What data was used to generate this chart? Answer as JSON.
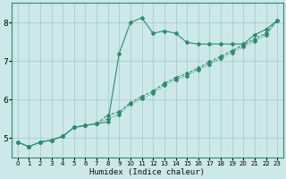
{
  "xlabel": "Humidex (Indice chaleur)",
  "bg_color": "#cce8e8",
  "grid_color": "#aacccc",
  "line_color": "#2e8b74",
  "xlim": [
    -0.5,
    23.5
  ],
  "ylim": [
    4.5,
    8.5
  ],
  "xtick_labels": [
    "0",
    "1",
    "2",
    "3",
    "4",
    "5",
    "6",
    "7",
    "8",
    "9",
    "10",
    "11",
    "12",
    "13",
    "14",
    "15",
    "16",
    "17",
    "18",
    "19",
    "20",
    "21",
    "22",
    "23"
  ],
  "xtick_pos": [
    0,
    1,
    2,
    3,
    4,
    5,
    6,
    7,
    8,
    9,
    10,
    11,
    12,
    13,
    14,
    15,
    16,
    17,
    18,
    19,
    20,
    21,
    22,
    23
  ],
  "yticks": [
    5,
    6,
    7,
    8
  ],
  "curve1_x": [
    0,
    1,
    2,
    3,
    4,
    5,
    6,
    7,
    8,
    9,
    10,
    11,
    12,
    13,
    14,
    15,
    16,
    17,
    18,
    19,
    20,
    21,
    22,
    23
  ],
  "curve1_y": [
    4.9,
    4.78,
    4.9,
    4.95,
    5.05,
    5.28,
    5.33,
    5.38,
    5.42,
    7.2,
    8.0,
    8.12,
    7.72,
    7.78,
    7.72,
    7.48,
    7.44,
    7.44,
    7.44,
    7.44,
    7.44,
    7.68,
    7.82,
    8.05
  ],
  "curve2_x": [
    0,
    1,
    2,
    3,
    4,
    5,
    6,
    7,
    8,
    9,
    10,
    11,
    12,
    13,
    14,
    15,
    16,
    17,
    18,
    19,
    20,
    21,
    22,
    23
  ],
  "curve2_y": [
    4.9,
    4.78,
    4.9,
    4.95,
    5.05,
    5.28,
    5.33,
    5.38,
    5.6,
    5.68,
    5.92,
    6.08,
    6.22,
    6.42,
    6.57,
    6.67,
    6.82,
    6.97,
    7.12,
    7.27,
    7.42,
    7.57,
    7.72,
    8.05
  ],
  "curve3_x": [
    0,
    1,
    2,
    3,
    4,
    5,
    6,
    7,
    8,
    9,
    10,
    11,
    12,
    13,
    14,
    15,
    16,
    17,
    18,
    19,
    20,
    21,
    22,
    23
  ],
  "curve3_y": [
    4.9,
    4.78,
    4.9,
    4.95,
    5.05,
    5.28,
    5.33,
    5.38,
    5.5,
    5.62,
    5.88,
    6.02,
    6.17,
    6.37,
    6.52,
    6.62,
    6.77,
    6.92,
    7.07,
    7.22,
    7.37,
    7.52,
    7.67,
    8.05
  ]
}
